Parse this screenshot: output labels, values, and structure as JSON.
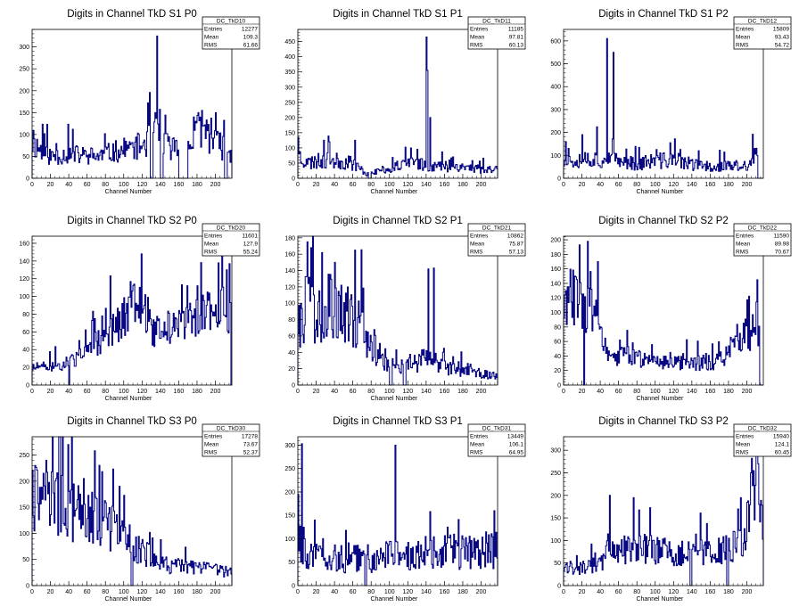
{
  "page": {
    "background": "#ffffff"
  },
  "colors": {
    "histogram_line": "#000080",
    "axis": "#000000",
    "stats_border": "#000000"
  },
  "chart_data": [
    {
      "type": "histogram",
      "title": "Digits in Channel TkD S1 P0",
      "xlabel": "Channel Number",
      "ylabel": "",
      "xlim": [
        0,
        218
      ],
      "ylim": [
        0,
        340
      ],
      "xticks": [
        0,
        20,
        40,
        60,
        80,
        100,
        120,
        140,
        160,
        180,
        200
      ],
      "yticks": [
        0,
        50,
        100,
        150,
        200,
        250,
        300
      ],
      "grid": false,
      "stats": {
        "name": "DC_TkD10",
        "entries": "12277",
        "mean": "109.3",
        "rms": "61.66"
      },
      "seed": 11,
      "profile": [
        [
          0,
          80
        ],
        [
          20,
          50
        ],
        [
          40,
          55
        ],
        [
          70,
          50
        ],
        [
          100,
          65
        ],
        [
          120,
          75
        ],
        [
          135,
          100
        ],
        [
          150,
          70
        ],
        [
          170,
          70
        ],
        [
          185,
          120
        ],
        [
          200,
          80
        ],
        [
          218,
          60
        ]
      ],
      "noise": 0.35,
      "spikes": [
        [
          136,
          325
        ],
        [
          134,
          150
        ],
        [
          176,
          140
        ],
        [
          185,
          155
        ],
        [
          200,
          150
        ]
      ],
      "zeros": [
        [
          129,
          132
        ],
        [
          140,
          143
        ],
        [
          160,
          170
        ],
        [
          210,
          213
        ]
      ]
    },
    {
      "type": "histogram",
      "title": "Digits in Channel TkD S1 P1",
      "xlabel": "Channel Number",
      "ylabel": "",
      "xlim": [
        0,
        218
      ],
      "ylim": [
        0,
        490
      ],
      "xticks": [
        0,
        20,
        40,
        60,
        80,
        100,
        120,
        140,
        160,
        180,
        200
      ],
      "yticks": [
        0,
        50,
        100,
        150,
        200,
        250,
        300,
        350,
        400,
        450
      ],
      "grid": false,
      "stats": {
        "name": "DC_TkD11",
        "entries": "11185",
        "mean": "97.81",
        "rms": "60.13"
      },
      "seed": 23,
      "profile": [
        [
          0,
          80
        ],
        [
          10,
          50
        ],
        [
          30,
          60
        ],
        [
          60,
          50
        ],
        [
          75,
          15
        ],
        [
          90,
          25
        ],
        [
          110,
          40
        ],
        [
          130,
          50
        ],
        [
          150,
          40
        ],
        [
          175,
          40
        ],
        [
          200,
          30
        ],
        [
          218,
          30
        ]
      ],
      "noise": 0.4,
      "spikes": [
        [
          0,
          135
        ],
        [
          140,
          465
        ],
        [
          141,
          355
        ],
        [
          144,
          200
        ],
        [
          28,
          125
        ],
        [
          34,
          120
        ],
        [
          62,
          125
        ]
      ],
      "zeros": [
        [
          77,
          80
        ]
      ]
    },
    {
      "type": "histogram",
      "title": "Digits in Channel TkD S1 P2",
      "xlabel": "Channel Number",
      "ylabel": "",
      "xlim": [
        0,
        218
      ],
      "ylim": [
        0,
        650
      ],
      "xticks": [
        0,
        20,
        40,
        60,
        80,
        100,
        120,
        140,
        160,
        180,
        200
      ],
      "yticks": [
        0,
        100,
        200,
        300,
        400,
        500,
        600
      ],
      "grid": false,
      "stats": {
        "name": "DC_TkD12",
        "entries": "15809",
        "mean": "93.43",
        "rms": "54.72"
      },
      "seed": 37,
      "profile": [
        [
          0,
          70
        ],
        [
          20,
          90
        ],
        [
          40,
          80
        ],
        [
          60,
          75
        ],
        [
          80,
          65
        ],
        [
          100,
          75
        ],
        [
          120,
          80
        ],
        [
          140,
          60
        ],
        [
          160,
          50
        ],
        [
          180,
          55
        ],
        [
          200,
          50
        ],
        [
          210,
          100
        ],
        [
          218,
          0
        ]
      ],
      "noise": 0.4,
      "spikes": [
        [
          47,
          610
        ],
        [
          54,
          550
        ],
        [
          20,
          190
        ],
        [
          36,
          225
        ],
        [
          2,
          160
        ],
        [
          116,
          155
        ],
        [
          82,
          135
        ],
        [
          147,
          120
        ],
        [
          208,
          130
        ]
      ],
      "zeros": [
        [
          212,
          218
        ]
      ]
    },
    {
      "type": "histogram",
      "title": "Digits in Channel TkD S2 P0",
      "xlabel": "Channel Number",
      "ylabel": "",
      "xlim": [
        0,
        218
      ],
      "ylim": [
        0,
        168
      ],
      "xticks": [
        0,
        20,
        40,
        60,
        80,
        100,
        120,
        140,
        160,
        180,
        200
      ],
      "yticks": [
        0,
        20,
        40,
        60,
        80,
        100,
        120,
        140,
        160
      ],
      "grid": false,
      "stats": {
        "name": "DC_TkD20",
        "entries": "11601",
        "mean": "127.9",
        "rms": "55.24"
      },
      "seed": 51,
      "profile": [
        [
          0,
          20
        ],
        [
          20,
          20
        ],
        [
          40,
          25
        ],
        [
          60,
          35
        ],
        [
          80,
          55
        ],
        [
          100,
          75
        ],
        [
          115,
          105
        ],
        [
          125,
          80
        ],
        [
          130,
          60
        ],
        [
          150,
          65
        ],
        [
          170,
          70
        ],
        [
          190,
          80
        ],
        [
          205,
          90
        ],
        [
          218,
          80
        ]
      ],
      "noise": 0.25,
      "spikes": [
        [
          119,
          148
        ],
        [
          203,
          138
        ],
        [
          212,
          130
        ],
        [
          215,
          137
        ],
        [
          68,
          75
        ],
        [
          76,
          78
        ]
      ],
      "zeros": [
        [
          40,
          41
        ],
        [
          217,
          218
        ]
      ]
    },
    {
      "type": "histogram",
      "title": "Digits in Channel TkD S2 P1",
      "xlabel": "Channel Number",
      "ylabel": "",
      "xlim": [
        0,
        218
      ],
      "ylim": [
        0,
        182
      ],
      "xticks": [
        0,
        20,
        40,
        60,
        80,
        100,
        120,
        140,
        160,
        180,
        200
      ],
      "yticks": [
        0,
        20,
        40,
        60,
        80,
        100,
        120,
        140,
        160,
        180
      ],
      "grid": false,
      "stats": {
        "name": "DC_TkD21",
        "entries": "10862",
        "mean": "75.87",
        "rms": "57.13"
      },
      "seed": 67,
      "profile": [
        [
          0,
          80
        ],
        [
          15,
          100
        ],
        [
          30,
          95
        ],
        [
          50,
          85
        ],
        [
          70,
          70
        ],
        [
          85,
          45
        ],
        [
          95,
          25
        ],
        [
          110,
          20
        ],
        [
          130,
          30
        ],
        [
          145,
          30
        ],
        [
          160,
          20
        ],
        [
          180,
          20
        ],
        [
          200,
          15
        ],
        [
          218,
          10
        ]
      ],
      "noise": 0.4,
      "spikes": [
        [
          10,
          175
        ],
        [
          14,
          168
        ],
        [
          142,
          142
        ],
        [
          148,
          143
        ],
        [
          26,
          162
        ],
        [
          40,
          150
        ],
        [
          62,
          165
        ]
      ],
      "zeros": [
        [
          100,
          103
        ],
        [
          115,
          118
        ]
      ]
    },
    {
      "type": "histogram",
      "title": "Digits in Channel TkD S2 P2",
      "xlabel": "Channel Number",
      "ylabel": "",
      "xlim": [
        0,
        218
      ],
      "ylim": [
        0,
        205
      ],
      "xticks": [
        0,
        20,
        40,
        60,
        80,
        100,
        120,
        140,
        160,
        180,
        200
      ],
      "yticks": [
        0,
        20,
        40,
        60,
        80,
        100,
        120,
        140,
        160,
        180,
        200
      ],
      "grid": false,
      "stats": {
        "name": "DC_TkD22",
        "entries": "11590",
        "mean": "89.98",
        "rms": "70.67"
      },
      "seed": 83,
      "profile": [
        [
          0,
          110
        ],
        [
          15,
          130
        ],
        [
          25,
          110
        ],
        [
          35,
          100
        ],
        [
          42,
          60
        ],
        [
          50,
          35
        ],
        [
          70,
          40
        ],
        [
          100,
          35
        ],
        [
          130,
          32
        ],
        [
          160,
          30
        ],
        [
          175,
          35
        ],
        [
          190,
          65
        ],
        [
          205,
          75
        ],
        [
          212,
          90
        ],
        [
          218,
          0
        ]
      ],
      "noise": 0.3,
      "spikes": [
        [
          17,
          193
        ],
        [
          26,
          198
        ],
        [
          37,
          170
        ],
        [
          211,
          145
        ],
        [
          2,
          130
        ]
      ],
      "zeros": [
        [
          22,
          23
        ],
        [
          214,
          218
        ]
      ]
    },
    {
      "type": "histogram",
      "title": "Digits in Channel TkD S3 P0",
      "xlabel": "Channel Number",
      "ylabel": "",
      "xlim": [
        0,
        218
      ],
      "ylim": [
        0,
        285
      ],
      "xticks": [
        0,
        20,
        40,
        60,
        80,
        100,
        120,
        140,
        160,
        180,
        200
      ],
      "yticks": [
        0,
        50,
        100,
        150,
        200,
        250
      ],
      "grid": false,
      "stats": {
        "name": "DC_TkD30",
        "entries": "17278",
        "mean": "73.67",
        "rms": "52.37"
      },
      "seed": 97,
      "profile": [
        [
          0,
          170
        ],
        [
          10,
          180
        ],
        [
          30,
          155
        ],
        [
          50,
          135
        ],
        [
          70,
          125
        ],
        [
          90,
          105
        ],
        [
          110,
          80
        ],
        [
          125,
          60
        ],
        [
          140,
          40
        ],
        [
          170,
          35
        ],
        [
          200,
          30
        ],
        [
          218,
          25
        ]
      ],
      "noise": 0.35,
      "spikes": [
        [
          39,
          270
        ],
        [
          3,
          230
        ],
        [
          12,
          215
        ],
        [
          26,
          205
        ],
        [
          56,
          205
        ],
        [
          95,
          190
        ]
      ],
      "zeros": [
        [
          108,
          110
        ]
      ]
    },
    {
      "type": "histogram",
      "title": "Digits in Channel TkD S3 P1",
      "xlabel": "Channel Number",
      "ylabel": "",
      "xlim": [
        0,
        218
      ],
      "ylim": [
        0,
        318
      ],
      "xticks": [
        0,
        20,
        40,
        60,
        80,
        100,
        120,
        140,
        160,
        180,
        200
      ],
      "yticks": [
        0,
        50,
        100,
        150,
        200,
        250,
        300
      ],
      "grid": false,
      "stats": {
        "name": "DC_TkD31",
        "entries": "13449",
        "mean": "106.1",
        "rms": "64.95"
      },
      "seed": 113,
      "profile": [
        [
          0,
          120
        ],
        [
          10,
          60
        ],
        [
          30,
          55
        ],
        [
          60,
          60
        ],
        [
          90,
          60
        ],
        [
          110,
          70
        ],
        [
          130,
          65
        ],
        [
          160,
          70
        ],
        [
          190,
          75
        ],
        [
          218,
          75
        ]
      ],
      "noise": 0.45,
      "spikes": [
        [
          4,
          303
        ],
        [
          106,
          300
        ],
        [
          0,
          195
        ],
        [
          18,
          140
        ],
        [
          163,
          125
        ],
        [
          214,
          160
        ]
      ],
      "zeros": [
        [
          73,
          75
        ]
      ]
    },
    {
      "type": "histogram",
      "title": "Digits in Channel TkD S3 P2",
      "xlabel": "Channel Number",
      "ylabel": "",
      "xlim": [
        0,
        218
      ],
      "ylim": [
        0,
        330
      ],
      "xticks": [
        0,
        20,
        40,
        60,
        80,
        100,
        120,
        140,
        160,
        180,
        200
      ],
      "yticks": [
        0,
        50,
        100,
        150,
        200,
        250,
        300
      ],
      "grid": false,
      "stats": {
        "name": "DC_TkD32",
        "entries": "15940",
        "mean": "124.1",
        "rms": "60.45"
      },
      "seed": 131,
      "profile": [
        [
          0,
          40
        ],
        [
          20,
          40
        ],
        [
          40,
          45
        ],
        [
          50,
          75
        ],
        [
          70,
          80
        ],
        [
          100,
          80
        ],
        [
          130,
          70
        ],
        [
          160,
          75
        ],
        [
          180,
          80
        ],
        [
          195,
          100
        ],
        [
          205,
          160
        ],
        [
          212,
          230
        ],
        [
          218,
          120
        ]
      ],
      "noise": 0.35,
      "spikes": [
        [
          211,
          320
        ],
        [
          207,
          255
        ],
        [
          50,
          200
        ],
        [
          76,
          195
        ],
        [
          204,
          250
        ],
        [
          190,
          170
        ]
      ],
      "zeros": [
        [
          138,
          140
        ],
        [
          178,
          180
        ]
      ]
    }
  ]
}
